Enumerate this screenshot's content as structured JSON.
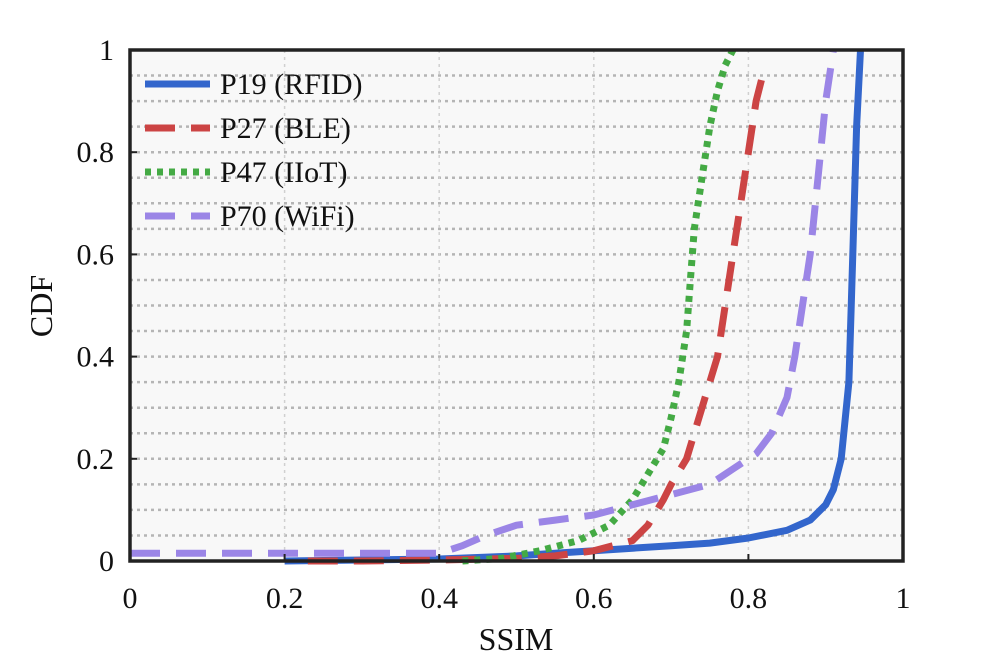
{
  "chart_data": {
    "type": "line",
    "title": "",
    "xlabel": "SSIM",
    "ylabel": "CDF",
    "xlim": [
      0,
      1
    ],
    "ylim": [
      0,
      1
    ],
    "x_ticks": [
      0,
      0.2,
      0.4,
      0.6,
      0.8,
      1
    ],
    "x_tick_labels": [
      "0",
      "0.2",
      "0.4",
      "0.6",
      "0.8",
      "1"
    ],
    "y_ticks": [
      0,
      0.2,
      0.4,
      0.6,
      0.8,
      1
    ],
    "y_tick_labels": [
      "0",
      "0.2",
      "0.4",
      "0.6",
      "0.8",
      "1"
    ],
    "x_grid": [
      0.2,
      0.4,
      0.6,
      0.8
    ],
    "y_grid": [
      0.05,
      0.1,
      0.15,
      0.2,
      0.25,
      0.3,
      0.35,
      0.4,
      0.45,
      0.5,
      0.55,
      0.6,
      0.65,
      0.7,
      0.75,
      0.8,
      0.85,
      0.9,
      0.95
    ],
    "grid": true,
    "legend_position": "top-left",
    "background": "#f8f8f8",
    "series": [
      {
        "name": "P19 (RFID)",
        "color": "#3366cc",
        "style": "solid",
        "x": [
          0.2,
          0.3,
          0.4,
          0.5,
          0.55,
          0.6,
          0.65,
          0.7,
          0.75,
          0.8,
          0.85,
          0.88,
          0.9,
          0.91,
          0.92,
          0.93,
          0.935,
          0.94,
          0.945
        ],
        "y": [
          0.0,
          0.002,
          0.004,
          0.01,
          0.015,
          0.02,
          0.025,
          0.03,
          0.035,
          0.045,
          0.06,
          0.08,
          0.11,
          0.14,
          0.2,
          0.35,
          0.6,
          0.85,
          1.0
        ]
      },
      {
        "name": "P27 (BLE)",
        "color": "#cc4444",
        "style": "dashed",
        "x": [
          0.23,
          0.3,
          0.4,
          0.5,
          0.55,
          0.6,
          0.65,
          0.67,
          0.69,
          0.7,
          0.72,
          0.74,
          0.76,
          0.77,
          0.78,
          0.79,
          0.8,
          0.81,
          0.82
        ],
        "y": [
          0.0,
          0.0,
          0.002,
          0.005,
          0.01,
          0.02,
          0.04,
          0.07,
          0.12,
          0.15,
          0.2,
          0.3,
          0.4,
          0.5,
          0.6,
          0.7,
          0.8,
          0.9,
          0.96
        ]
      },
      {
        "name": "P47 (IIoT)",
        "color": "#44aa44",
        "style": "dotted",
        "x": [
          0.43,
          0.48,
          0.53,
          0.58,
          0.62,
          0.65,
          0.67,
          0.69,
          0.7,
          0.71,
          0.72,
          0.725,
          0.73,
          0.74,
          0.75,
          0.76,
          0.77,
          0.78
        ],
        "y": [
          0.0,
          0.005,
          0.02,
          0.04,
          0.07,
          0.12,
          0.17,
          0.22,
          0.28,
          0.35,
          0.45,
          0.55,
          0.65,
          0.75,
          0.85,
          0.92,
          0.97,
          1.0
        ]
      },
      {
        "name": "P70 (WiFi)",
        "color": "#9b85e6",
        "style": "dashed",
        "x": [
          0.0,
          0.1,
          0.2,
          0.3,
          0.4,
          0.43,
          0.46,
          0.5,
          0.55,
          0.6,
          0.65,
          0.7,
          0.75,
          0.78,
          0.81,
          0.83,
          0.85,
          0.86,
          0.87,
          0.88,
          0.89,
          0.9,
          0.91
        ],
        "y": [
          0.015,
          0.015,
          0.015,
          0.015,
          0.015,
          0.03,
          0.05,
          0.07,
          0.08,
          0.09,
          0.11,
          0.13,
          0.15,
          0.18,
          0.21,
          0.25,
          0.32,
          0.4,
          0.5,
          0.6,
          0.75,
          0.9,
          1.0
        ]
      }
    ]
  }
}
